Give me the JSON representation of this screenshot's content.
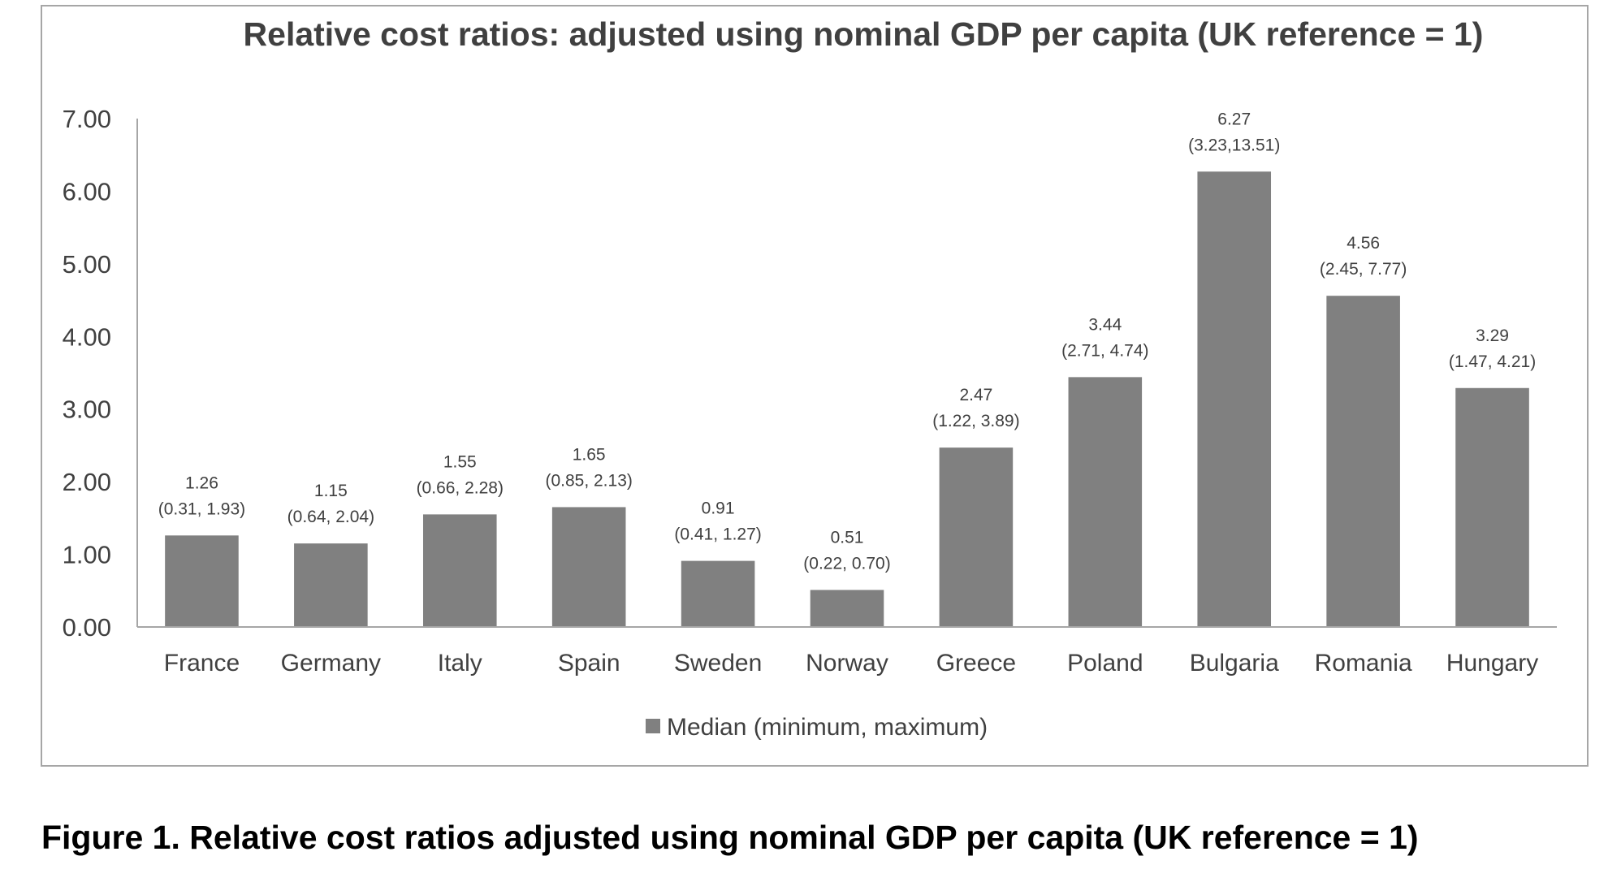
{
  "chart_data": {
    "type": "bar",
    "title": "Relative cost ratios: adjusted using nominal GDP per capita (UK reference = 1)",
    "xlabel": "",
    "ylabel": "",
    "categories": [
      "France",
      "Germany",
      "Italy",
      "Spain",
      "Sweden",
      "Norway",
      "Greece",
      "Poland",
      "Bulgaria",
      "Romania",
      "Hungary"
    ],
    "series": [
      {
        "name": "Median (minimum, maximum)",
        "values": [
          1.26,
          1.15,
          1.55,
          1.65,
          0.91,
          0.51,
          2.47,
          3.44,
          6.27,
          4.56,
          3.29
        ],
        "value_labels": [
          "1.26",
          "1.15",
          "1.55",
          "1.65",
          "0.91",
          "0.51",
          "2.47",
          "3.44",
          "6.27",
          "4.56",
          "3.29"
        ],
        "range_labels": [
          "(0.31, 1.93)",
          "(0.64, 2.04)",
          "(0.66, 2.28)",
          "(0.85, 2.13)",
          "(0.41, 1.27)",
          "(0.22, 0.70)",
          "(1.22, 3.89)",
          "(2.71, 4.74)",
          "(3.23,13.51)",
          "(2.45, 7.77)",
          "(1.47, 4.21)"
        ]
      }
    ],
    "ylim": [
      0,
      7
    ],
    "yticks": [
      "0.00",
      "1.00",
      "2.00",
      "3.00",
      "4.00",
      "5.00",
      "6.00",
      "7.00"
    ],
    "grid": false,
    "legend_position": "bottom",
    "bar_color": "#808080",
    "axis_color": "#a6a6a6",
    "text_color": "#404040"
  },
  "caption": "Figure 1. Relative cost ratios adjusted using nominal GDP per capita (UK reference = 1)"
}
